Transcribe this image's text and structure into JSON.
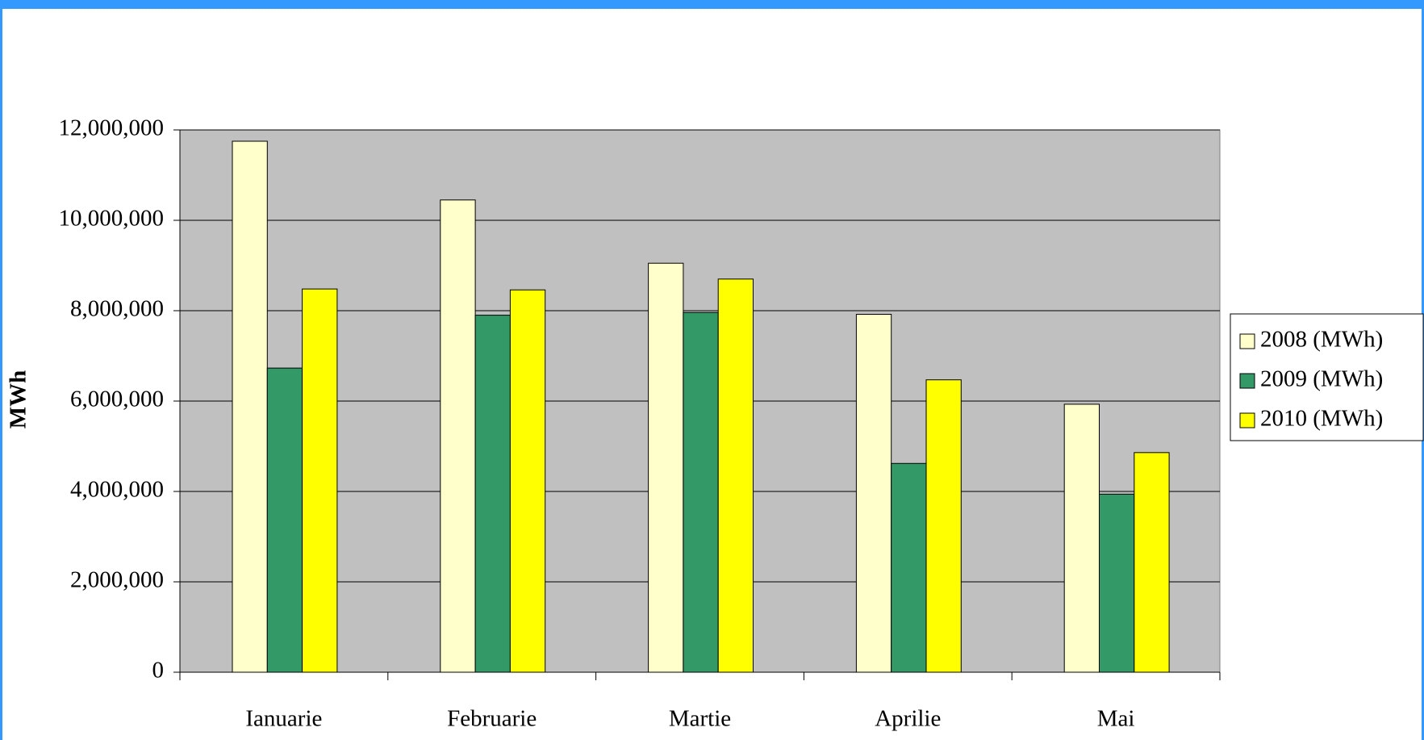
{
  "chart_data": {
    "type": "bar",
    "y_label": "MWh",
    "categories": [
      "Ianuarie",
      "Februarie",
      "Martie",
      "Aprilie",
      "Mai"
    ],
    "series": [
      {
        "name": "2008 (MWh)",
        "color": "#ffffcc",
        "values": [
          11750000,
          10450000,
          9050000,
          7920000,
          5930000
        ]
      },
      {
        "name": "2009 (MWh)",
        "color": "#339966",
        "values": [
          6730000,
          7900000,
          7960000,
          4620000,
          3940000
        ]
      },
      {
        "name": "2010 (MWh)",
        "color": "#ffff00",
        "values": [
          8480000,
          8460000,
          8700000,
          6470000,
          4860000
        ]
      }
    ],
    "ylim": [
      0,
      12000000
    ],
    "yticks": [
      0,
      {
        "value": 2000000,
        "label": "2,000,000"
      },
      {
        "value": 4000000,
        "label": "4,000,000"
      },
      {
        "value": 6000000,
        "label": "6,000,000"
      },
      {
        "value": 8000000,
        "label": "8,000,000"
      },
      {
        "value": 10000000,
        "label": "10,000,000"
      },
      {
        "value": 12000000,
        "label": "12,000,000"
      }
    ],
    "grid": true,
    "legend": "right"
  }
}
